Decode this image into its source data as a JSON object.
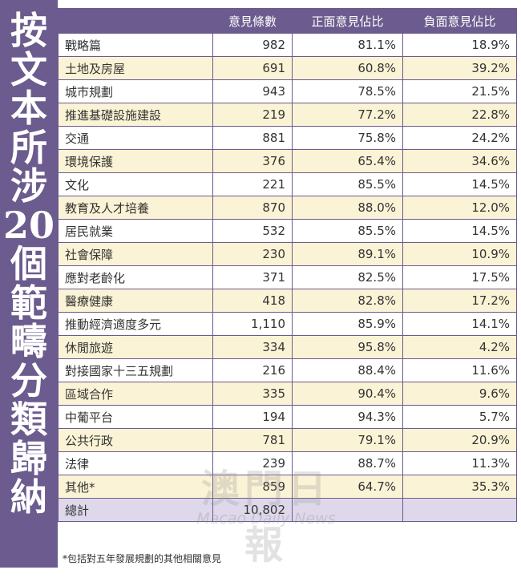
{
  "side_title": [
    "按",
    "文",
    "本",
    "所",
    "涉",
    "20",
    "個",
    "範",
    "疇",
    "分",
    "類",
    "歸",
    "納"
  ],
  "table": {
    "headers": [
      "",
      "意見條數",
      "正面意見佔比",
      "負面意見佔比"
    ],
    "rows": [
      [
        "戰略篇",
        "982",
        "81.1%",
        "18.9%"
      ],
      [
        "土地及房屋",
        "691",
        "60.8%",
        "39.2%"
      ],
      [
        "城市規劃",
        "943",
        "78.5%",
        "21.5%"
      ],
      [
        "推進基礎設施建設",
        "219",
        "77.2%",
        "22.8%"
      ],
      [
        "交通",
        "881",
        "75.8%",
        "24.2%"
      ],
      [
        "環境保護",
        "376",
        "65.4%",
        "34.6%"
      ],
      [
        "文化",
        "221",
        "85.5%",
        "14.5%"
      ],
      [
        "教育及人才培養",
        "870",
        "88.0%",
        "12.0%"
      ],
      [
        "居民就業",
        "532",
        "85.5%",
        "14.5%"
      ],
      [
        "社會保障",
        "230",
        "89.1%",
        "10.9%"
      ],
      [
        "應對老齡化",
        "371",
        "82.5%",
        "17.5%"
      ],
      [
        "醫療健康",
        "418",
        "82.8%",
        "17.2%"
      ],
      [
        "推動經濟適度多元",
        "1,110",
        "85.9%",
        "14.1%"
      ],
      [
        "休閒旅遊",
        "334",
        "95.8%",
        "4.2%"
      ],
      [
        "對接國家十三五規劃",
        "216",
        "88.4%",
        "11.6%"
      ],
      [
        "區域合作",
        "335",
        "90.4%",
        "9.6%"
      ],
      [
        "中葡平台",
        "194",
        "94.3%",
        "5.7%"
      ],
      [
        "公共行政",
        "781",
        "79.1%",
        "20.9%"
      ],
      [
        "法律",
        "239",
        "88.7%",
        "11.3%"
      ],
      [
        "其他*",
        "859",
        "64.7%",
        "35.3%"
      ]
    ],
    "total": [
      "總計",
      "10,802",
      "",
      ""
    ]
  },
  "footnote": "*包括對五年發展規劃的其他相關意見",
  "watermark": {
    "chinese": "澳門日報",
    "english": "Macao Daily News"
  },
  "colors": {
    "accent": "#6b5b8e",
    "row_even": "#fbf3d6",
    "total_row": "#ded8ea"
  }
}
